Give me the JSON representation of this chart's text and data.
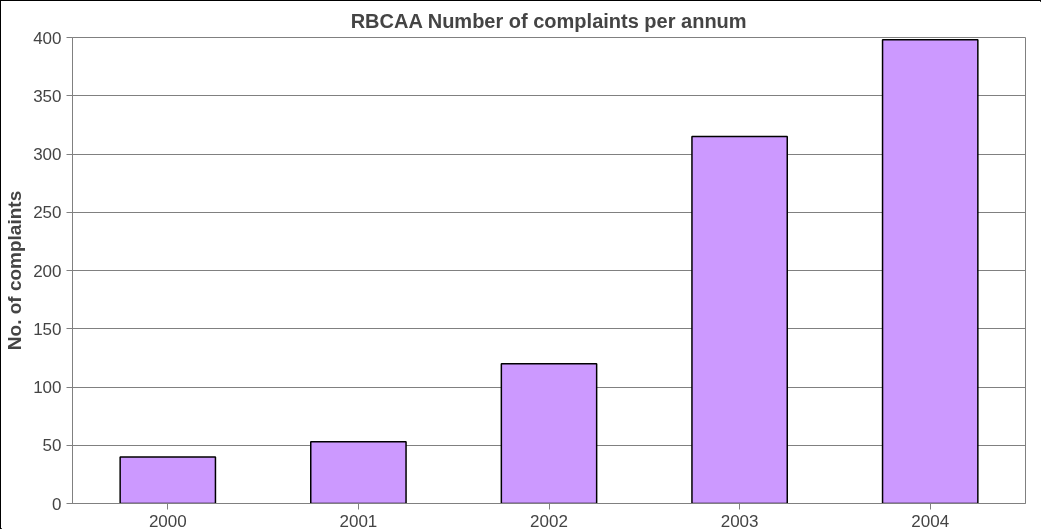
{
  "chart_data": {
    "type": "bar",
    "title": "RBCAA Number of complaints per annum",
    "ylabel": "No. of complaints",
    "categories": [
      "2000",
      "2001",
      "2002",
      "2003",
      "2004"
    ],
    "values": [
      40,
      53,
      120,
      315,
      398
    ],
    "color": "#cc99ff",
    "ylim": [
      0,
      400
    ],
    "yticks": [
      0,
      50,
      100,
      150,
      200,
      250,
      300,
      350,
      400
    ],
    "grid": "y"
  }
}
